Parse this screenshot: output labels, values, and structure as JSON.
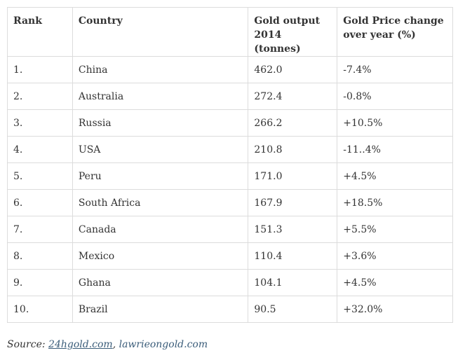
{
  "table": {
    "headers": {
      "rank": "Rank",
      "country": "Country",
      "output": "Gold output 2014 (tonnes)",
      "change": "Gold Price change over year (%)"
    },
    "rows": [
      {
        "rank": "1.",
        "country": "China",
        "output": "462.0",
        "change": "-7.4%"
      },
      {
        "rank": "2.",
        "country": "Australia",
        "output": "272.4",
        "change": "-0.8%"
      },
      {
        "rank": "3.",
        "country": "Russia",
        "output": "266.2",
        "change": "+10.5%"
      },
      {
        "rank": "4.",
        "country": "USA",
        "output": "210.8",
        "change": "-11..4%"
      },
      {
        "rank": "5.",
        "country": "Peru",
        "output": "171.0",
        "change": "+4.5%"
      },
      {
        "rank": "6.",
        "country": "South Africa",
        "output": "167.9",
        "change": "+18.5%"
      },
      {
        "rank": "7.",
        "country": "Canada",
        "output": "151.3",
        "change": "+5.5%"
      },
      {
        "rank": "8.",
        "country": "Mexico",
        "output": "110.4",
        "change": "+3.6%"
      },
      {
        "rank": "9.",
        "country": "Ghana",
        "output": "104.1",
        "change": "+4.5%"
      },
      {
        "rank": "10.",
        "country": "Brazil",
        "output": "90.5",
        "change": "+32.0%"
      }
    ]
  },
  "source": {
    "prefix": "Source: ",
    "link1": "24hgold.com",
    "separator": ", ",
    "link2": "lawrieongold.com"
  },
  "colors": {
    "link": "#3b5d7a",
    "border": "#dcdcdc",
    "text": "#333333"
  }
}
